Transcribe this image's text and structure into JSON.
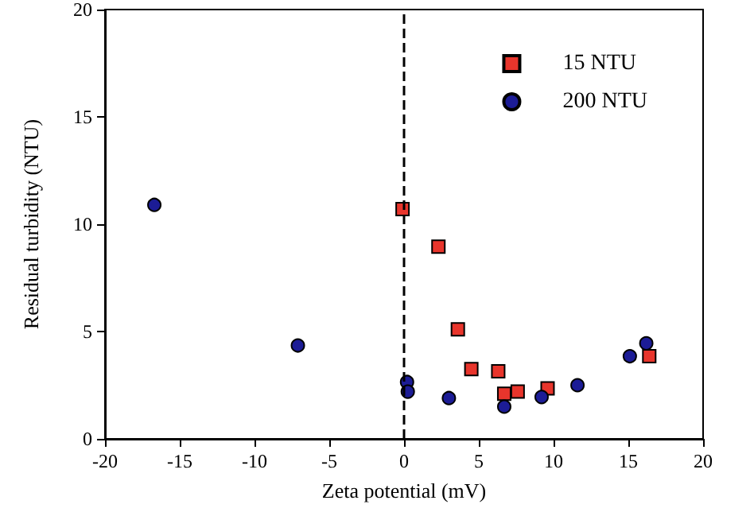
{
  "chart_data": {
    "type": "scatter",
    "xlabel": "Zeta potential (mV)",
    "ylabel": "Residual turbidity (NTU)",
    "xlim": [
      -20,
      20
    ],
    "xticks": [
      -20,
      -15,
      -10,
      -5,
      0,
      5,
      10,
      15,
      20
    ],
    "ylim": [
      0,
      20
    ],
    "yticks": [
      0,
      5,
      10,
      15,
      20
    ],
    "grid": false,
    "legend": "top right",
    "series": [
      {
        "name": "15 NTU",
        "color": "#e8352c",
        "marker": "square",
        "x": [
          -0.1,
          2.3,
          3.6,
          4.5,
          6.3,
          6.7,
          7.6,
          9.6,
          16.4
        ],
        "values": [
          10.7,
          8.95,
          5.1,
          3.25,
          3.15,
          2.1,
          2.2,
          2.35,
          3.85
        ]
      },
      {
        "name": "200 NTU",
        "color": "#1c1c96",
        "marker": "circle",
        "x": [
          -16.7,
          -7.1,
          0.2,
          0.25,
          3.0,
          6.7,
          9.2,
          11.6,
          15.1,
          16.2
        ],
        "values": [
          10.9,
          4.35,
          2.65,
          2.2,
          1.9,
          1.5,
          1.95,
          2.5,
          3.85,
          4.45
        ]
      }
    ],
    "ref_lines": [
      {
        "axis": "x",
        "value": 0,
        "color": "#000000",
        "line_style": "dashed"
      }
    ]
  }
}
